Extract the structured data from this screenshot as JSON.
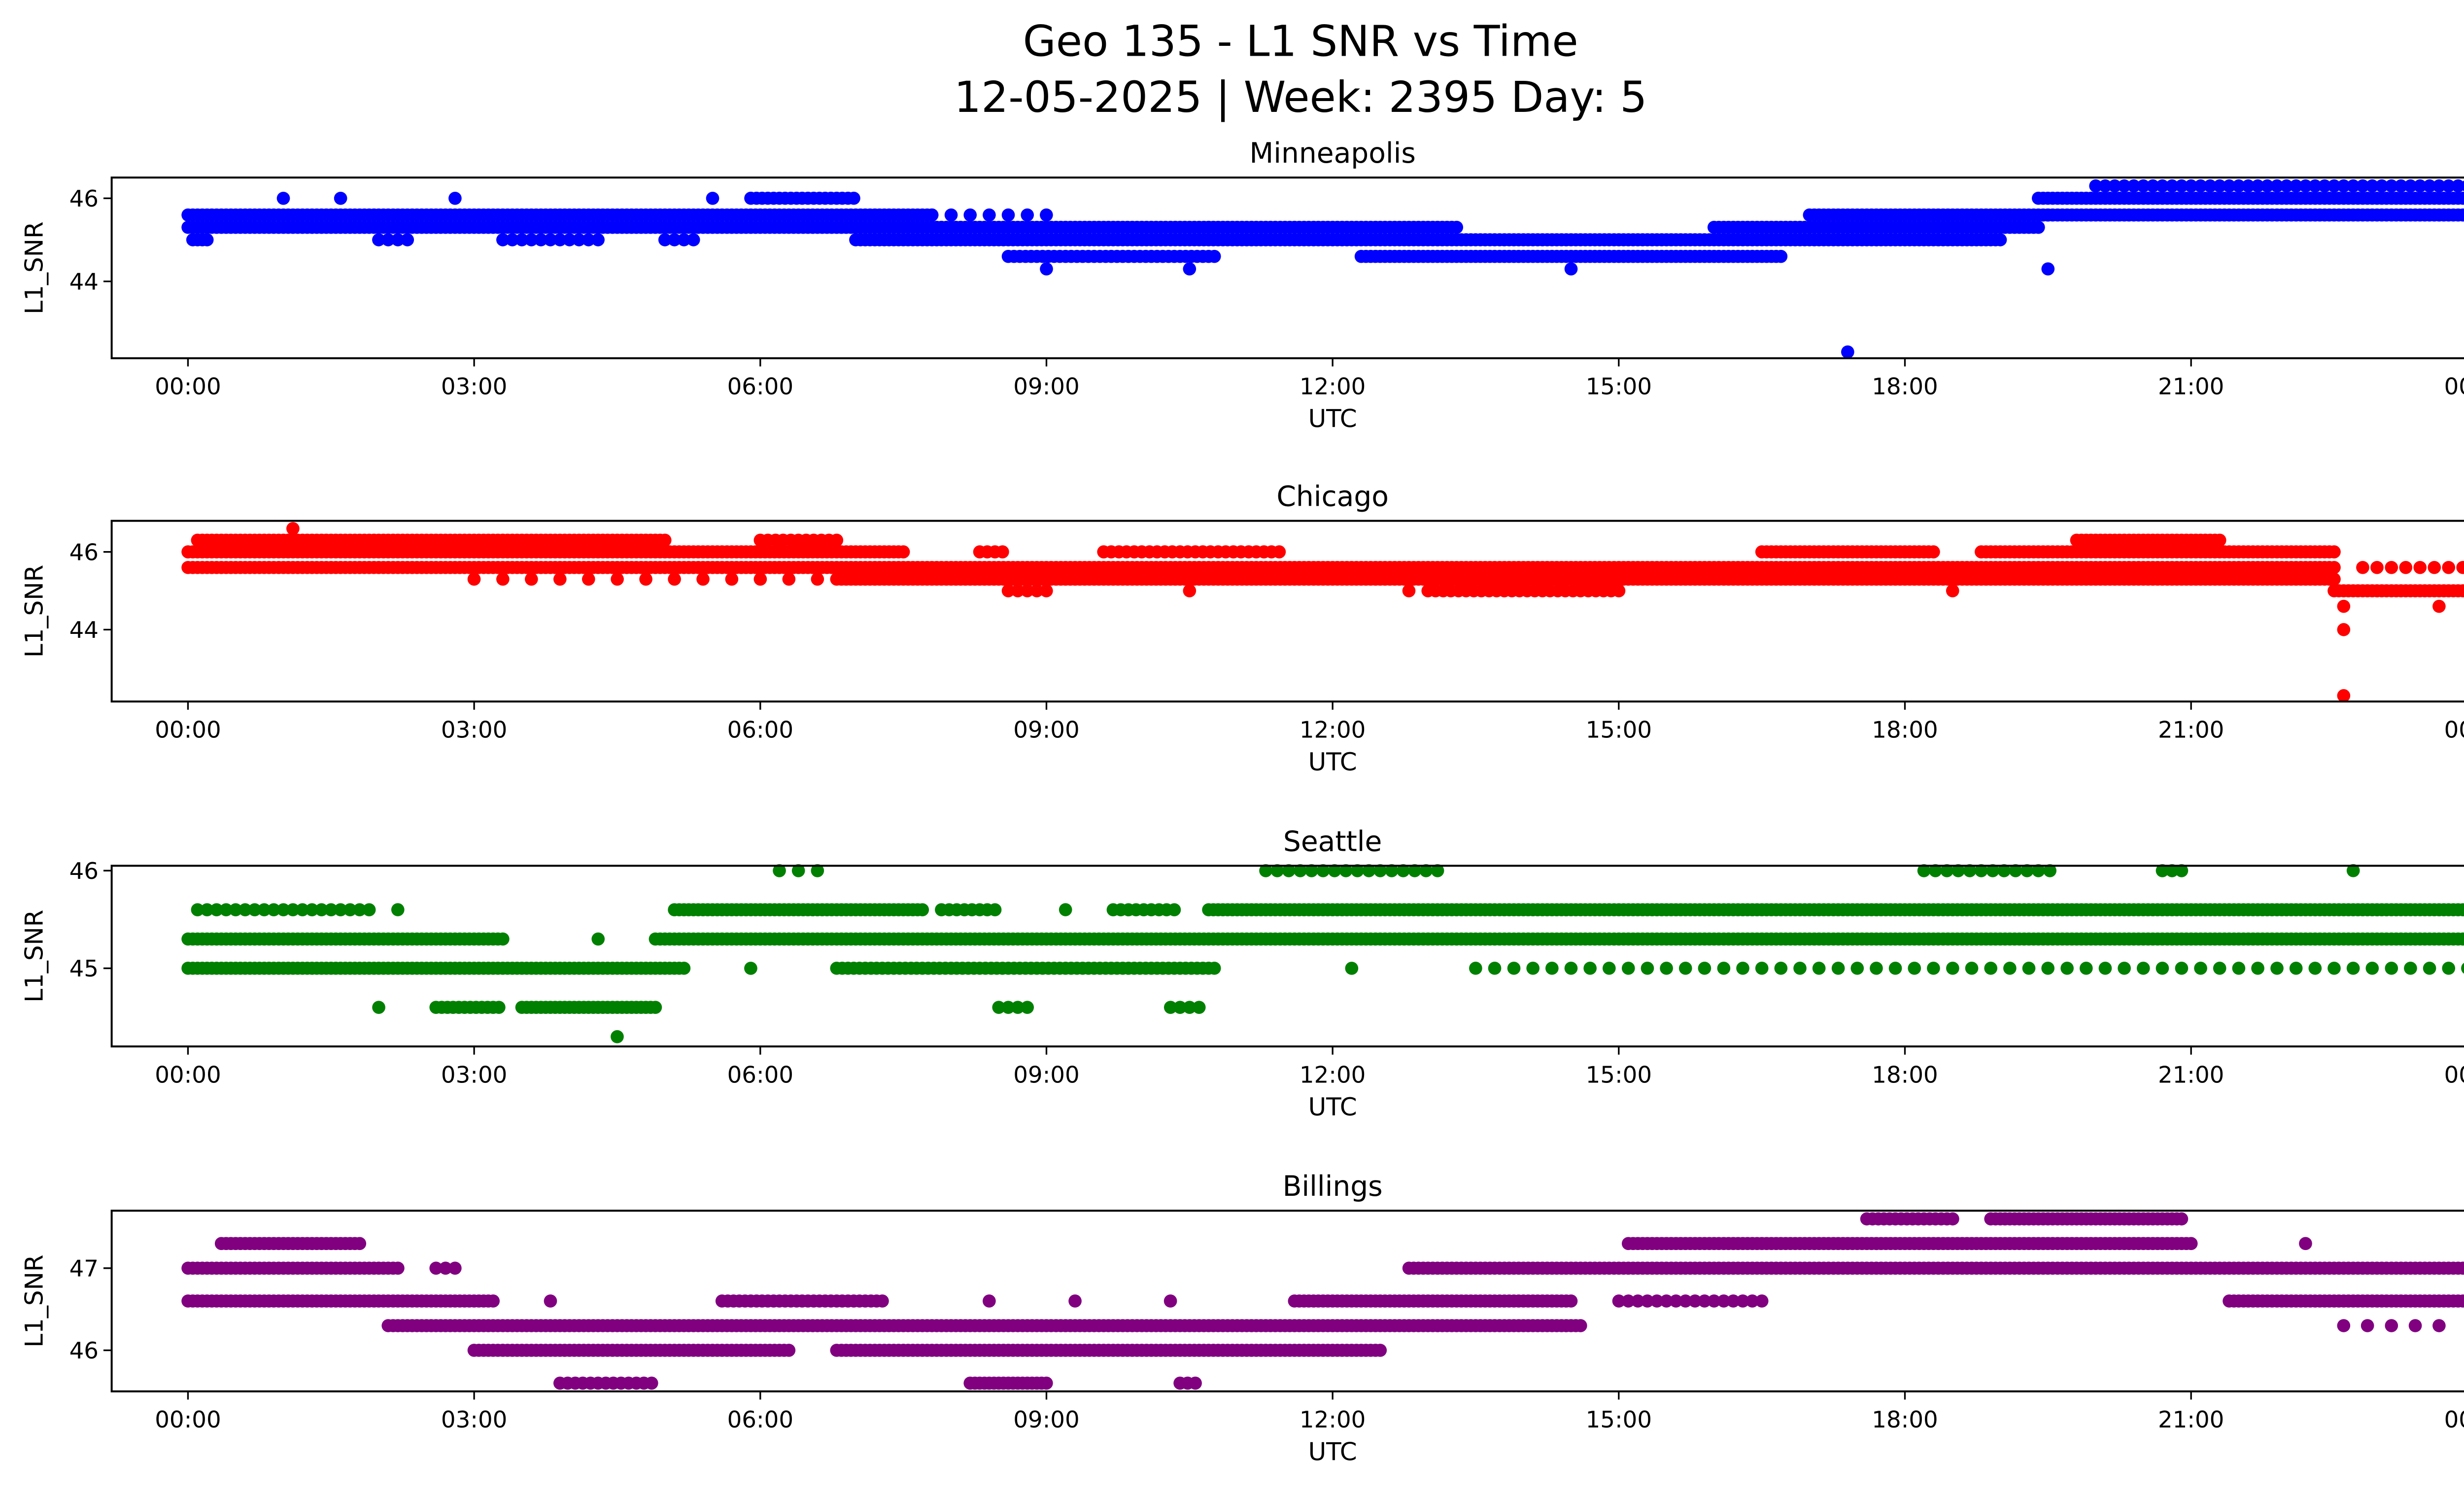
{
  "title_line1": "Geo 135 - L1 SNR vs Time",
  "title_line2": "12-05-2025 | Week: 2395 Day: 5",
  "chart_data": [
    {
      "type": "scatter",
      "title": "Minneapolis",
      "xlabel": "UTC",
      "ylabel": "L1_SNR",
      "color": "#0000ff",
      "xlim": [
        -0.8,
        24.8
      ],
      "ylim": [
        42.15,
        46.5
      ],
      "yticks": [
        44,
        46
      ],
      "xticks": [
        "00:00",
        "03:00",
        "06:00",
        "09:00",
        "12:00",
        "15:00",
        "18:00",
        "21:00",
        "00:00"
      ],
      "segments": [
        {
          "v": 45.6,
          "t": [
            0,
            7.8
          ],
          "step": 0.05
        },
        {
          "v": 45.6,
          "t": [
            7.8,
            9.0
          ],
          "step": 0.2
        },
        {
          "v": 45.6,
          "t": [
            17.0,
            19.5
          ],
          "step": 0.05
        },
        {
          "v": 45.6,
          "t": [
            19.5,
            24
          ],
          "step": 0.05
        },
        {
          "v": 45.3,
          "t": [
            0,
            8.0
          ],
          "step": 0.05
        },
        {
          "v": 45.3,
          "t": [
            8.0,
            10.7
          ],
          "step": 0.05
        },
        {
          "v": 45.3,
          "t": [
            10.7,
            13.3
          ],
          "step": 0.05
        },
        {
          "v": 45.3,
          "t": [
            16.0,
            19.4
          ],
          "step": 0.05
        },
        {
          "v": 45.0,
          "t": [
            0.05,
            0.2
          ],
          "step": 0.05
        },
        {
          "v": 45.0,
          "t": [
            2.0,
            2.3
          ],
          "step": 0.1
        },
        {
          "v": 45.0,
          "t": [
            3.3,
            4.3
          ],
          "step": 0.1
        },
        {
          "v": 45.0,
          "t": [
            5.0,
            5.3
          ],
          "step": 0.1
        },
        {
          "v": 45.0,
          "t": [
            7.0,
            19.0
          ],
          "step": 0.05
        },
        {
          "v": 44.6,
          "t": [
            8.6,
            10.8
          ],
          "step": 0.06
        },
        {
          "v": 44.6,
          "t": [
            12.3,
            16.7
          ],
          "step": 0.05
        },
        {
          "v": 46.0,
          "t": [
            5.9,
            7.0
          ],
          "step": 0.06
        },
        {
          "v": 46.0,
          "t": [
            19.4,
            24
          ],
          "step": 0.05
        },
        {
          "v": 46.3,
          "t": [
            20.0,
            24
          ],
          "step": 0.1
        }
      ],
      "outliers": [
        [
          1.0,
          46.0
        ],
        [
          1.6,
          46.0
        ],
        [
          2.8,
          46.0
        ],
        [
          5.5,
          46.0
        ],
        [
          9.0,
          44.3
        ],
        [
          10.5,
          44.3
        ],
        [
          14.5,
          44.3
        ],
        [
          19.5,
          44.3
        ],
        [
          17.4,
          42.3
        ]
      ]
    },
    {
      "type": "scatter",
      "title": "Chicago",
      "xlabel": "UTC",
      "ylabel": "L1_SNR",
      "color": "#ff0000",
      "xlim": [
        -0.8,
        24.8
      ],
      "ylim": [
        42.15,
        46.8
      ],
      "yticks": [
        44,
        46
      ],
      "xticks": [
        "00:00",
        "03:00",
        "06:00",
        "09:00",
        "12:00",
        "15:00",
        "18:00",
        "21:00",
        "00:00"
      ],
      "segments": [
        {
          "v": 46.3,
          "t": [
            0.1,
            5.0
          ],
          "step": 0.05
        },
        {
          "v": 46.3,
          "t": [
            6.0,
            6.8
          ],
          "step": 0.08
        },
        {
          "v": 46.3,
          "t": [
            19.8,
            21.3
          ],
          "step": 0.05
        },
        {
          "v": 46.0,
          "t": [
            0,
            7.5
          ],
          "step": 0.05
        },
        {
          "v": 46.0,
          "t": [
            8.3,
            8.6
          ],
          "step": 0.08
        },
        {
          "v": 46.0,
          "t": [
            9.6,
            11.5
          ],
          "step": 0.08
        },
        {
          "v": 46.0,
          "t": [
            16.5,
            18.3
          ],
          "step": 0.05
        },
        {
          "v": 46.0,
          "t": [
            18.8,
            22.5
          ],
          "step": 0.05
        },
        {
          "v": 45.6,
          "t": [
            0,
            22.5
          ],
          "step": 0.05
        },
        {
          "v": 45.6,
          "t": [
            22.8,
            24
          ],
          "step": 0.15
        },
        {
          "v": 45.3,
          "t": [
            3.0,
            6.8
          ],
          "step": 0.3
        },
        {
          "v": 45.3,
          "t": [
            6.8,
            22.5
          ],
          "step": 0.05
        },
        {
          "v": 45.0,
          "t": [
            8.6,
            9.0
          ],
          "step": 0.1
        },
        {
          "v": 45.0,
          "t": [
            13.0,
            15.0
          ],
          "step": 0.08
        },
        {
          "v": 45.0,
          "t": [
            22.5,
            24
          ],
          "step": 0.05
        }
      ],
      "outliers": [
        [
          1.1,
          46.6
        ],
        [
          10.5,
          45.0
        ],
        [
          12.8,
          45.0
        ],
        [
          18.5,
          45.0
        ],
        [
          23.6,
          44.6
        ],
        [
          22.6,
          44.6
        ],
        [
          22.6,
          44.0
        ],
        [
          22.6,
          42.3
        ]
      ]
    },
    {
      "type": "scatter",
      "title": "Seattle",
      "xlabel": "UTC",
      "ylabel": "L1_SNR",
      "color": "#008000",
      "xlim": [
        -0.8,
        24.8
      ],
      "ylim": [
        44.2,
        46.05
      ],
      "yticks": [
        45,
        46
      ],
      "xticks": [
        "00:00",
        "03:00",
        "06:00",
        "09:00",
        "12:00",
        "15:00",
        "18:00",
        "21:00",
        "00:00"
      ],
      "segments": [
        {
          "v": 45.3,
          "t": [
            0,
            3.3
          ],
          "step": 0.05
        },
        {
          "v": 45.3,
          "t": [
            4.9,
            24
          ],
          "step": 0.05
        },
        {
          "v": 45.6,
          "t": [
            0.1,
            1.9
          ],
          "step": 0.1
        },
        {
          "v": 45.6,
          "t": [
            5.1,
            7.7
          ],
          "step": 0.05
        },
        {
          "v": 45.6,
          "t": [
            7.9,
            8.5
          ],
          "step": 0.08
        },
        {
          "v": 45.6,
          "t": [
            9.7,
            10.4
          ],
          "step": 0.08
        },
        {
          "v": 45.6,
          "t": [
            10.7,
            24
          ],
          "step": 0.05
        },
        {
          "v": 45.0,
          "t": [
            0,
            5.2
          ],
          "step": 0.05
        },
        {
          "v": 45.0,
          "t": [
            6.8,
            10.8
          ],
          "step": 0.06
        },
        {
          "v": 45.0,
          "t": [
            13.5,
            24
          ],
          "step": 0.2
        },
        {
          "v": 44.6,
          "t": [
            2.6,
            3.3
          ],
          "step": 0.06
        },
        {
          "v": 44.6,
          "t": [
            3.5,
            4.9
          ],
          "step": 0.05
        },
        {
          "v": 44.6,
          "t": [
            8.5,
            8.8
          ],
          "step": 0.1
        },
        {
          "v": 44.6,
          "t": [
            10.3,
            10.6
          ],
          "step": 0.1
        },
        {
          "v": 46.0,
          "t": [
            6.2,
            6.6
          ],
          "step": 0.2
        },
        {
          "v": 46.0,
          "t": [
            11.3,
            13.1
          ],
          "step": 0.12
        },
        {
          "v": 46.0,
          "t": [
            18.2,
            19.6
          ],
          "step": 0.12
        },
        {
          "v": 46.0,
          "t": [
            20.7,
            20.9
          ],
          "step": 0.1
        }
      ],
      "outliers": [
        [
          2.0,
          44.6
        ],
        [
          2.2,
          45.6
        ],
        [
          4.3,
          45.3
        ],
        [
          4.5,
          44.3
        ],
        [
          5.9,
          45.0
        ],
        [
          9.2,
          45.6
        ],
        [
          12.2,
          45.0
        ],
        [
          22.7,
          46.0
        ]
      ]
    },
    {
      "type": "scatter",
      "title": "Billings",
      "xlabel": "UTC",
      "ylabel": "L1_SNR",
      "color": "#800080",
      "xlim": [
        -0.8,
        24.8
      ],
      "ylim": [
        45.5,
        47.7
      ],
      "yticks": [
        46,
        47
      ],
      "xticks": [
        "00:00",
        "03:00",
        "06:00",
        "09:00",
        "12:00",
        "15:00",
        "18:00",
        "21:00",
        "00:00"
      ],
      "segments": [
        {
          "v": 47.3,
          "t": [
            0.35,
            1.8
          ],
          "step": 0.05
        },
        {
          "v": 47.3,
          "t": [
            15.1,
            21.0
          ],
          "step": 0.05
        },
        {
          "v": 47.0,
          "t": [
            0,
            2.2
          ],
          "step": 0.05
        },
        {
          "v": 47.0,
          "t": [
            2.6,
            2.8
          ],
          "step": 0.1
        },
        {
          "v": 47.0,
          "t": [
            12.8,
            24
          ],
          "step": 0.05
        },
        {
          "v": 46.6,
          "t": [
            0,
            3.2
          ],
          "step": 0.05
        },
        {
          "v": 46.6,
          "t": [
            5.6,
            7.3
          ],
          "step": 0.06
        },
        {
          "v": 46.6,
          "t": [
            11.6,
            14.5
          ],
          "step": 0.05
        },
        {
          "v": 46.6,
          "t": [
            15.0,
            16.5
          ],
          "step": 0.1
        },
        {
          "v": 46.6,
          "t": [
            21.4,
            24
          ],
          "step": 0.05
        },
        {
          "v": 46.3,
          "t": [
            2.1,
            14.6
          ],
          "step": 0.05
        },
        {
          "v": 46.3,
          "t": [
            22.6,
            23.6
          ],
          "step": 0.25
        },
        {
          "v": 46.0,
          "t": [
            3.0,
            6.3
          ],
          "step": 0.05
        },
        {
          "v": 46.0,
          "t": [
            6.8,
            12.5
          ],
          "step": 0.05
        },
        {
          "v": 45.6,
          "t": [
            3.9,
            4.9
          ],
          "step": 0.08
        },
        {
          "v": 45.6,
          "t": [
            8.2,
            9.0
          ],
          "step": 0.05
        },
        {
          "v": 45.6,
          "t": [
            10.4,
            10.6
          ],
          "step": 0.08
        },
        {
          "v": 47.6,
          "t": [
            17.6,
            18.5
          ],
          "step": 0.06
        },
        {
          "v": 47.6,
          "t": [
            18.9,
            20.9
          ],
          "step": 0.05
        }
      ],
      "outliers": [
        [
          3.8,
          46.6
        ],
        [
          8.4,
          46.6
        ],
        [
          9.3,
          46.6
        ],
        [
          10.3,
          46.6
        ],
        [
          22.2,
          47.3
        ]
      ]
    }
  ]
}
